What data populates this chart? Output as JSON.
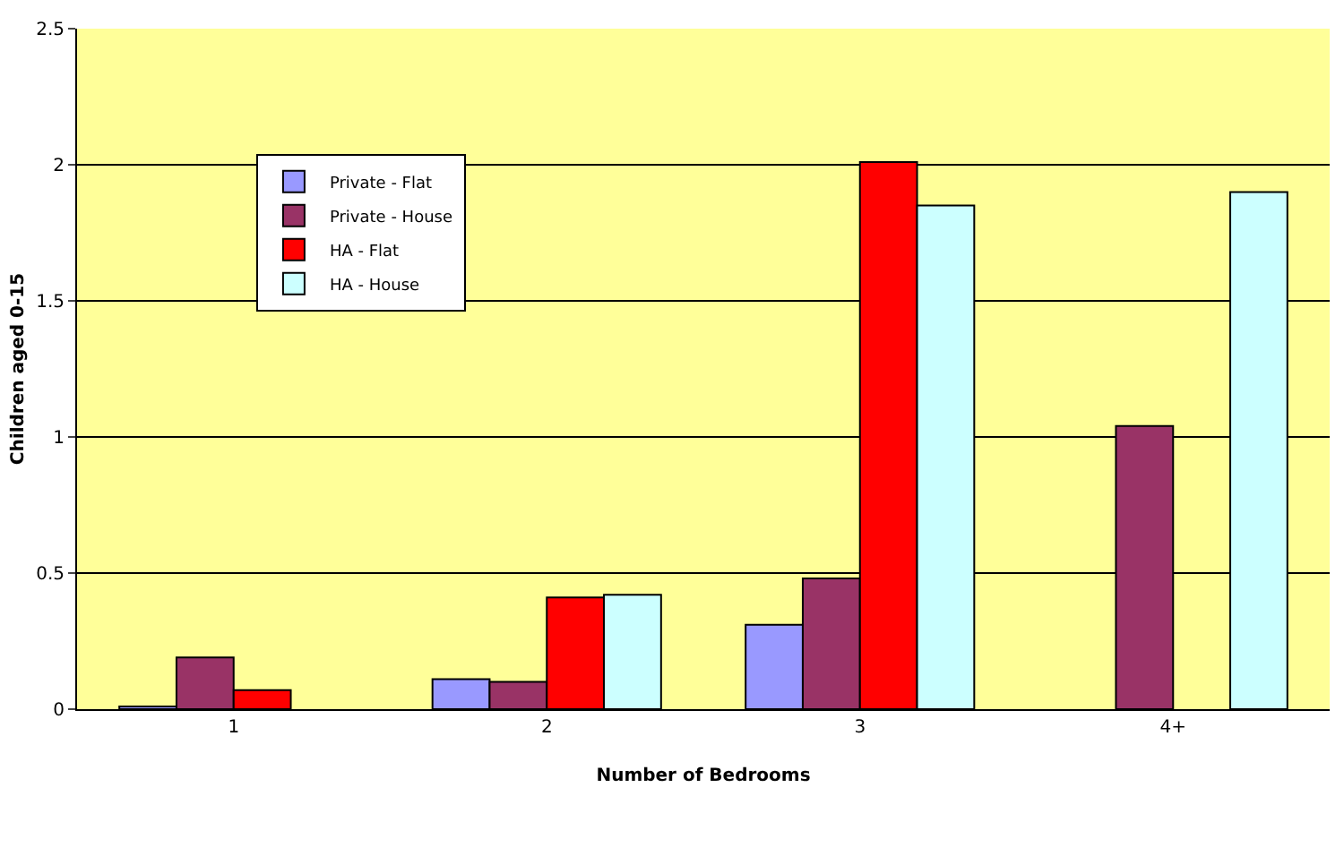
{
  "chart_data": {
    "type": "bar",
    "xlabel": "Number of Bedrooms",
    "ylabel": "Children aged 0-15",
    "categories": [
      "1",
      "2",
      "3",
      "4+"
    ],
    "series": [
      {
        "name": "Private - Flat",
        "color": "#9999ff",
        "values": [
          0.01,
          0.11,
          0.31,
          null
        ]
      },
      {
        "name": "Private - House",
        "color": "#993366",
        "values": [
          0.19,
          0.1,
          0.48,
          1.04
        ]
      },
      {
        "name": "HA - Flat",
        "color": "#ff0000",
        "values": [
          0.07,
          0.41,
          2.01,
          null
        ]
      },
      {
        "name": "HA - House",
        "color": "#ccffff",
        "values": [
          null,
          0.42,
          1.85,
          1.9
        ]
      }
    ],
    "ylim": [
      0,
      2.5
    ],
    "yticks": [
      0,
      0.5,
      1,
      1.5,
      2,
      2.5
    ],
    "grid": "y",
    "legend": "top left"
  }
}
